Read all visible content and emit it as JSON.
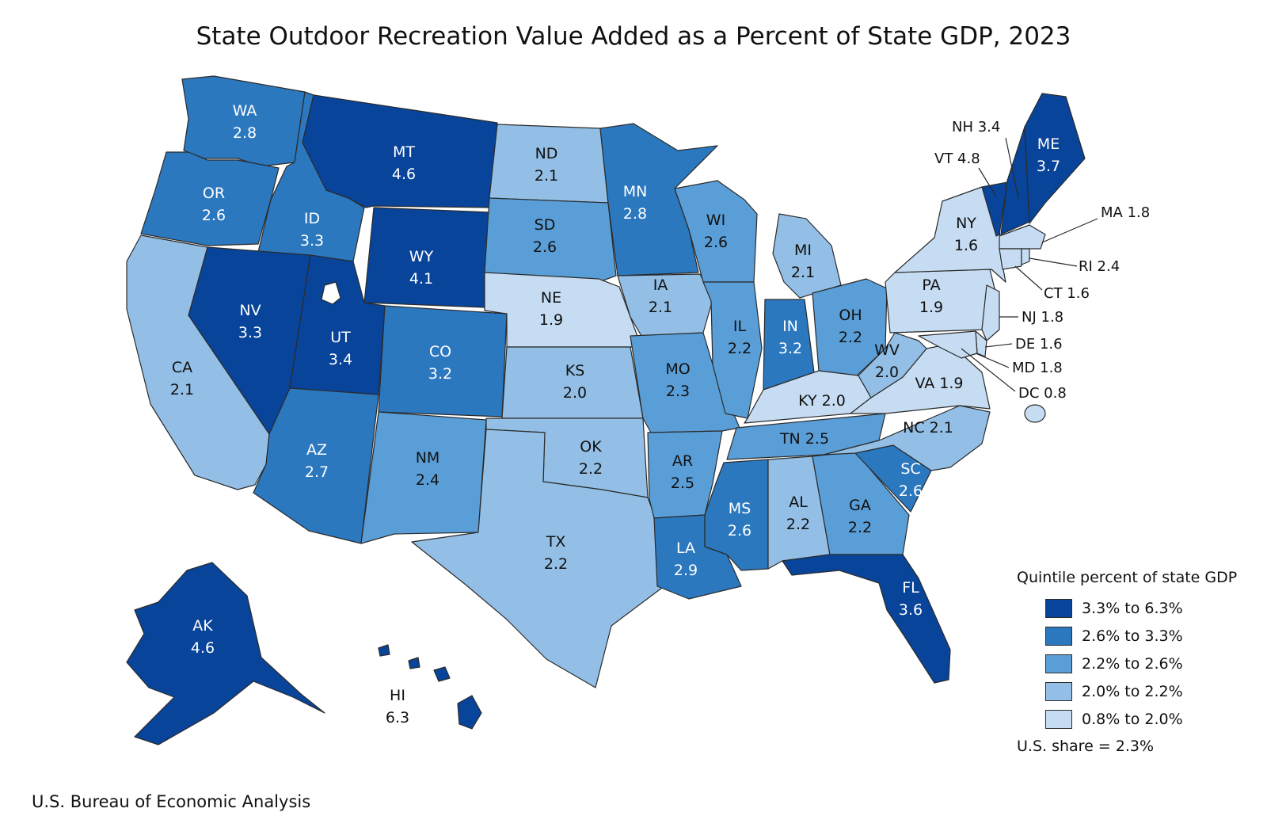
{
  "title": "State Outdoor Recreation Value Added as a Percent of State GDP, 2023",
  "source": "U.S. Bureau of Economic Analysis",
  "legend": {
    "title": "Quintile percent of state GDP",
    "items": [
      {
        "label": "3.3% to 6.3%",
        "color": "#08449a"
      },
      {
        "label": "2.6% to 3.3%",
        "color": "#2b78bf"
      },
      {
        "label": "2.2% to 2.6%",
        "color": "#5a9ed8"
      },
      {
        "label": "2.0% to 2.2%",
        "color": "#93bfe6"
      },
      {
        "label": "0.8% to 2.0%",
        "color": "#c6dcf2"
      }
    ],
    "us_share": "U.S. share = 2.3%"
  },
  "states": {
    "WA": {
      "abbr": "WA",
      "value": "2.8"
    },
    "OR": {
      "abbr": "OR",
      "value": "2.6"
    },
    "CA": {
      "abbr": "CA",
      "value": "2.1"
    },
    "ID": {
      "abbr": "ID",
      "value": "3.3"
    },
    "NV": {
      "abbr": "NV",
      "value": "3.3"
    },
    "MT": {
      "abbr": "MT",
      "value": "4.6"
    },
    "WY": {
      "abbr": "WY",
      "value": "4.1"
    },
    "UT": {
      "abbr": "UT",
      "value": "3.4"
    },
    "AZ": {
      "abbr": "AZ",
      "value": "2.7"
    },
    "CO": {
      "abbr": "CO",
      "value": "3.2"
    },
    "NM": {
      "abbr": "NM",
      "value": "2.4"
    },
    "ND": {
      "abbr": "ND",
      "value": "2.1"
    },
    "SD": {
      "abbr": "SD",
      "value": "2.6"
    },
    "NE": {
      "abbr": "NE",
      "value": "1.9"
    },
    "KS": {
      "abbr": "KS",
      "value": "2.0"
    },
    "OK": {
      "abbr": "OK",
      "value": "2.2"
    },
    "TX": {
      "abbr": "TX",
      "value": "2.2"
    },
    "MN": {
      "abbr": "MN",
      "value": "2.8"
    },
    "IA": {
      "abbr": "IA",
      "value": "2.1"
    },
    "MO": {
      "abbr": "MO",
      "value": "2.3"
    },
    "AR": {
      "abbr": "AR",
      "value": "2.5"
    },
    "LA": {
      "abbr": "LA",
      "value": "2.9"
    },
    "WI": {
      "abbr": "WI",
      "value": "2.6"
    },
    "IL": {
      "abbr": "IL",
      "value": "2.2"
    },
    "MI": {
      "abbr": "MI",
      "value": "2.1"
    },
    "IN": {
      "abbr": "IN",
      "value": "3.2"
    },
    "OH": {
      "abbr": "OH",
      "value": "2.2"
    },
    "KY": {
      "abbr": "KY",
      "value": "2.0"
    },
    "TN": {
      "abbr": "TN",
      "value": "2.5"
    },
    "MS": {
      "abbr": "MS",
      "value": "2.6"
    },
    "AL": {
      "abbr": "AL",
      "value": "2.2"
    },
    "GA": {
      "abbr": "GA",
      "value": "2.2"
    },
    "FL": {
      "abbr": "FL",
      "value": "3.6"
    },
    "SC": {
      "abbr": "SC",
      "value": "2.6"
    },
    "NC": {
      "abbr": "NC",
      "value": "2.1"
    },
    "VA": {
      "abbr": "VA",
      "value": "1.9"
    },
    "WV": {
      "abbr": "WV",
      "value": "2.0"
    },
    "PA": {
      "abbr": "PA",
      "value": "1.9"
    },
    "NY": {
      "abbr": "NY",
      "value": "1.6"
    },
    "ME": {
      "abbr": "ME",
      "value": "3.7"
    },
    "AK": {
      "abbr": "AK",
      "value": "4.6"
    },
    "HI": {
      "abbr": "HI",
      "value": "6.3"
    }
  },
  "callouts": {
    "NH": "NH 3.4",
    "VT": "VT 4.8",
    "MA": "MA 1.8",
    "RI": "RI 2.4",
    "CT": "CT 1.6",
    "NJ": "NJ 1.8",
    "DE": "DE 1.6",
    "MD": "MD 1.8",
    "DC": "DC 0.8"
  }
}
